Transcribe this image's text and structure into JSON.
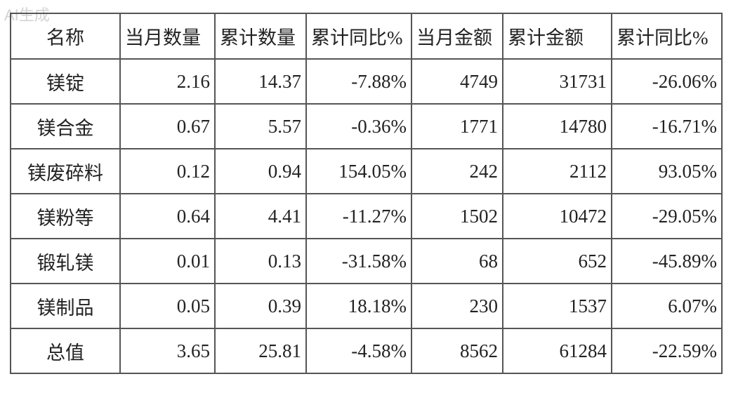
{
  "watermark": "AI生成",
  "table": {
    "header": [
      "名称",
      "当月数量",
      "累计数量",
      "累计同比%",
      "当月金额",
      "累计金额",
      "累计同比%"
    ],
    "rows": [
      [
        "镁锭",
        "2.16",
        "14.37",
        "-7.88%",
        "4749",
        "31731",
        "-26.06%"
      ],
      [
        "镁合金",
        "0.67",
        "5.57",
        "-0.36%",
        "1771",
        "14780",
        "-16.71%"
      ],
      [
        "镁废碎料",
        "0.12",
        "0.94",
        "154.05%",
        "242",
        "2112",
        "93.05%"
      ],
      [
        "镁粉等",
        "0.64",
        "4.41",
        "-11.27%",
        "1502",
        "10472",
        "-29.05%"
      ],
      [
        "锻轧镁",
        "0.01",
        "0.13",
        "-31.58%",
        "68",
        "652",
        "-45.89%"
      ],
      [
        "镁制品",
        "0.05",
        "0.39",
        "18.18%",
        "230",
        "1537",
        "6.07%"
      ],
      [
        "总值",
        "3.65",
        "25.81",
        "-4.58%",
        "8562",
        "61284",
        "-22.59%"
      ]
    ]
  }
}
